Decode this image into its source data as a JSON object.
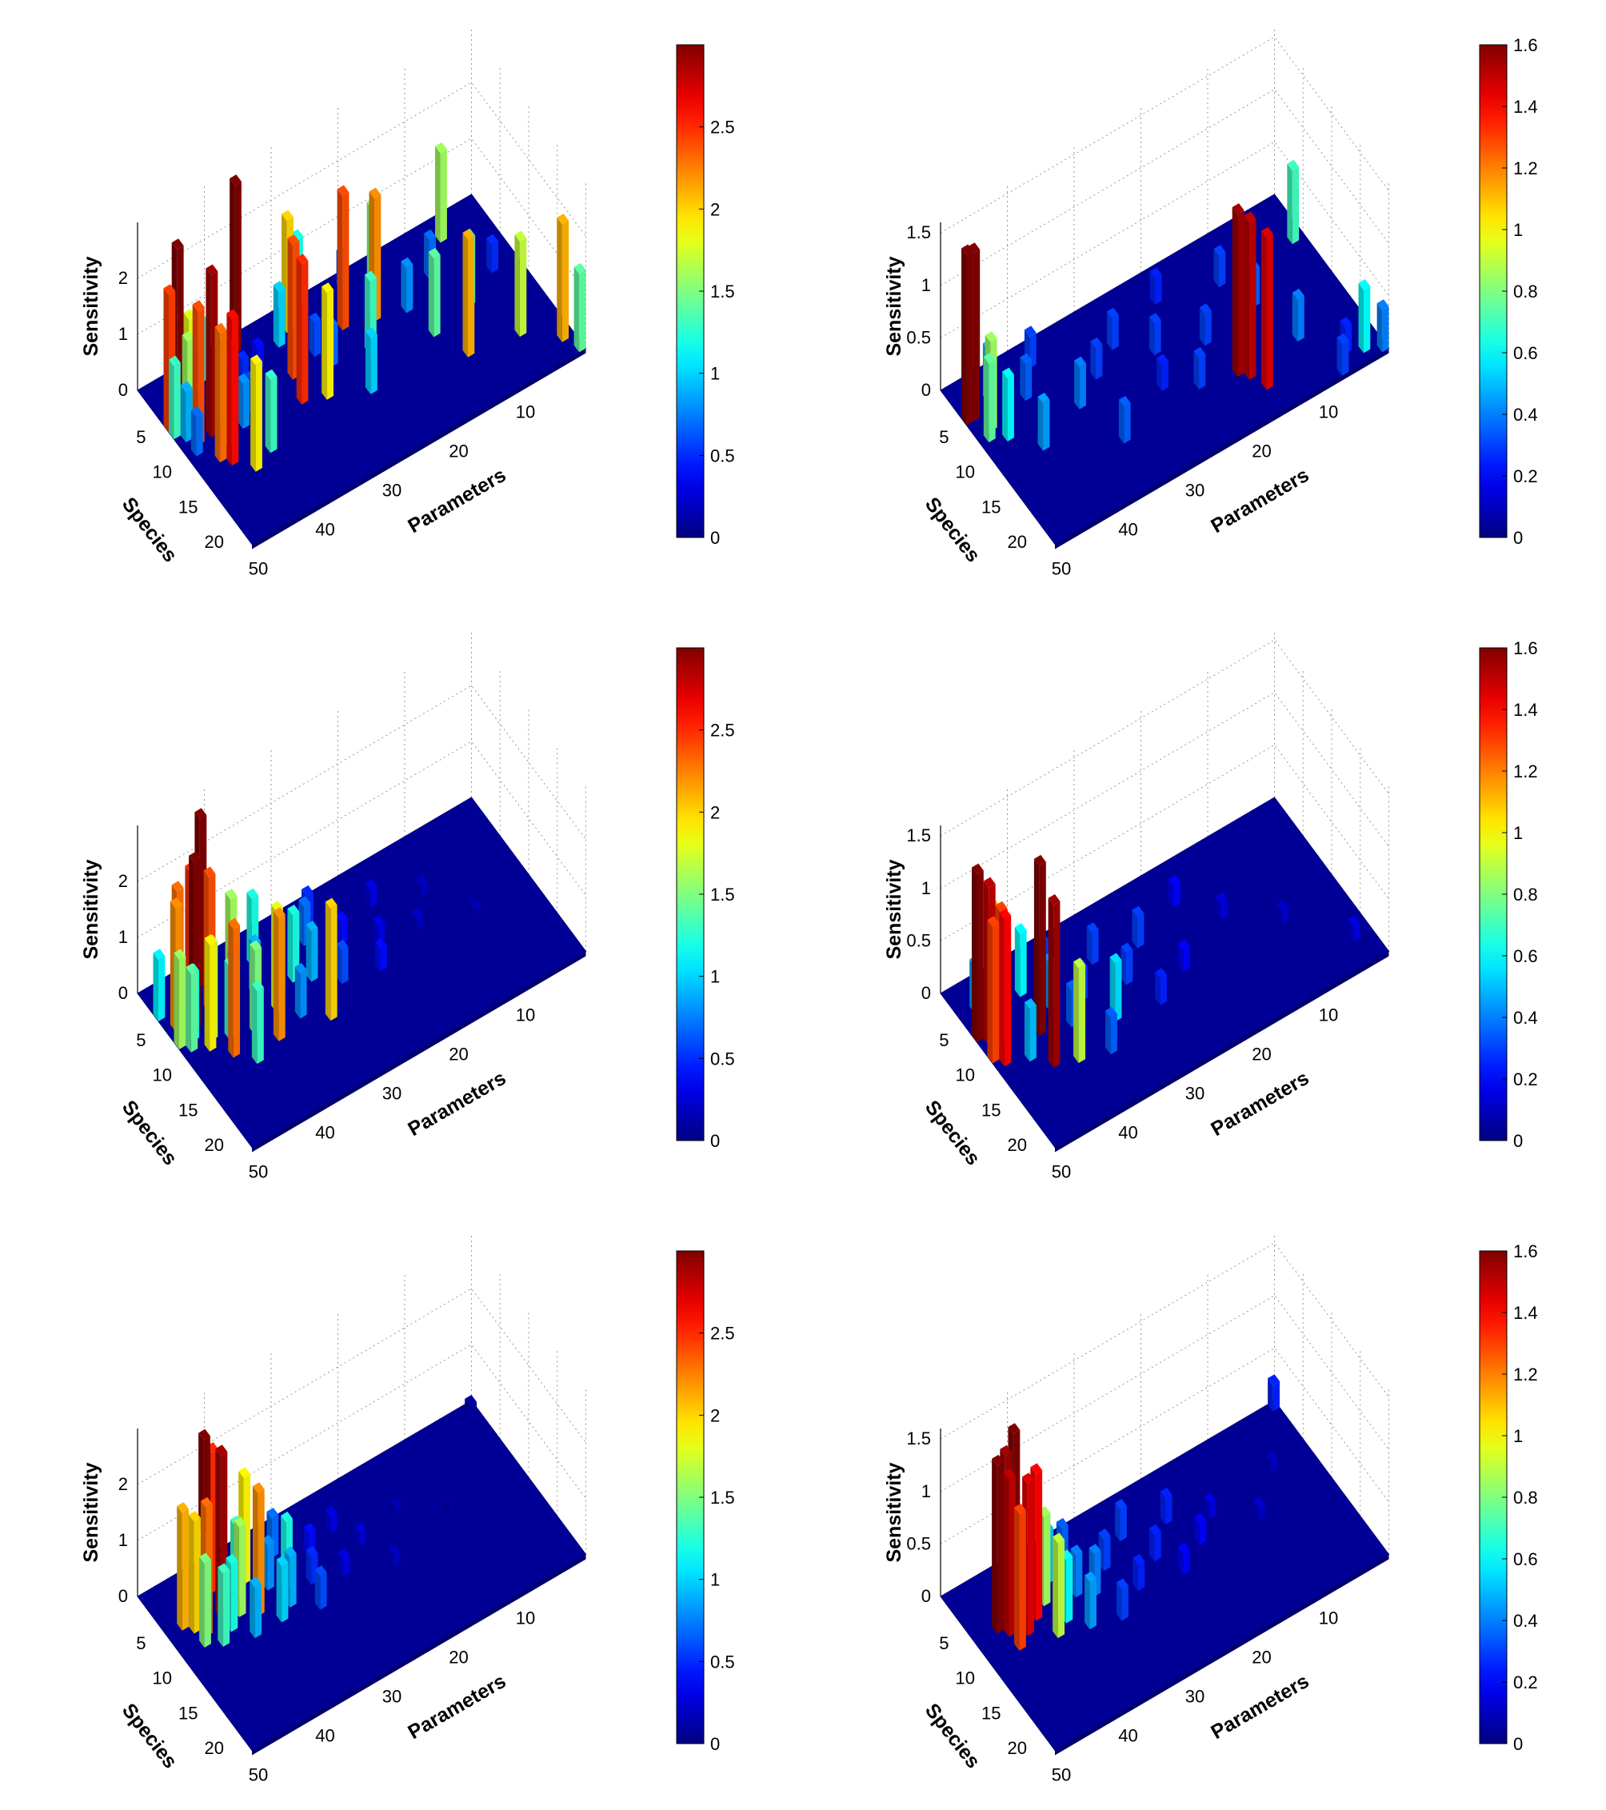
{
  "chart_data": [
    {
      "type": "bar3d",
      "panel": "top-left",
      "xlabel": "Parameters",
      "ylabel": "Species",
      "zlabel": "Sensitivity",
      "x_ticks": [
        "10",
        "20",
        "30",
        "40",
        "50"
      ],
      "y_ticks": [
        "5",
        "10",
        "15",
        "20"
      ],
      "z_ticks": [
        "0",
        "1",
        "2"
      ],
      "colorbar_ticks": [
        "0",
        "0.5",
        "1",
        "1.5",
        "2",
        "2.5"
      ],
      "zlim": [
        0,
        3
      ],
      "bars": [
        [
          1,
          6,
          2.45
        ],
        [
          1,
          7,
          1.3
        ],
        [
          2,
          8,
          0.9
        ],
        [
          2,
          10,
          0.7
        ],
        [
          3,
          5,
          3.0
        ],
        [
          3,
          7,
          1.6
        ],
        [
          3,
          9,
          2.4
        ],
        [
          4,
          6,
          1.8
        ],
        [
          4,
          12,
          2.3
        ],
        [
          5,
          9,
          2.9
        ],
        [
          5,
          13,
          2.6
        ],
        [
          6,
          4,
          0.8
        ],
        [
          6,
          11,
          1.8
        ],
        [
          7,
          8,
          1.2
        ],
        [
          7,
          15,
          1.9
        ],
        [
          8,
          3,
          1.1
        ],
        [
          9,
          10,
          0.8
        ],
        [
          10,
          14,
          1.3
        ],
        [
          11,
          9,
          0.6
        ],
        [
          12,
          6,
          0.5
        ],
        [
          14,
          2,
          3.0
        ],
        [
          15,
          5,
          0.4
        ],
        [
          17,
          11,
          2.5
        ],
        [
          18,
          8,
          2.4
        ],
        [
          19,
          4,
          1.0
        ],
        [
          20,
          12,
          1.9
        ],
        [
          21,
          3,
          2.0
        ],
        [
          22,
          7,
          0.6
        ],
        [
          23,
          9,
          0.7
        ],
        [
          24,
          1,
          1.2
        ],
        [
          25,
          14,
          1.0
        ],
        [
          27,
          6,
          2.4
        ],
        [
          28,
          10,
          1.3
        ],
        [
          30,
          2,
          0.6
        ],
        [
          31,
          7,
          2.2
        ],
        [
          33,
          4,
          1.5
        ],
        [
          35,
          8,
          0.8
        ],
        [
          36,
          12,
          1.4
        ],
        [
          38,
          16,
          2.1
        ],
        [
          40,
          6,
          0.7
        ],
        [
          42,
          11,
          1.2
        ],
        [
          44,
          3,
          1.6
        ],
        [
          45,
          17,
          1.7
        ],
        [
          47,
          9,
          0.5
        ],
        [
          49,
          20,
          2.1
        ],
        [
          50,
          22,
          1.4
        ]
      ]
    },
    {
      "type": "bar3d",
      "panel": "top-right",
      "xlabel": "Parameters",
      "ylabel": "Species",
      "zlabel": "Sensitivity",
      "x_ticks": [
        "10",
        "20",
        "30",
        "40",
        "50"
      ],
      "y_ticks": [
        "5",
        "10",
        "15",
        "20"
      ],
      "z_ticks": [
        "0",
        "0.5",
        "1",
        "1.5"
      ],
      "colorbar_ticks": [
        "0",
        "0.2",
        "0.4",
        "0.6",
        "0.8",
        "1",
        "1.2",
        "1.4",
        "1.6"
      ],
      "zlim": [
        0,
        1.6
      ],
      "bars": [
        [
          1,
          5,
          1.62
        ],
        [
          2,
          5,
          1.6
        ],
        [
          2,
          8,
          0.75
        ],
        [
          3,
          7,
          0.85
        ],
        [
          4,
          9,
          0.6
        ],
        [
          5,
          4,
          0.5
        ],
        [
          7,
          12,
          0.45
        ],
        [
          9,
          6,
          0.35
        ],
        [
          12,
          3,
          0.3
        ],
        [
          14,
          10,
          0.4
        ],
        [
          16,
          16,
          0.35
        ],
        [
          18,
          8,
          0.3
        ],
        [
          22,
          6,
          0.3
        ],
        [
          24,
          13,
          0.25
        ],
        [
          26,
          9,
          0.3
        ],
        [
          28,
          15,
          0.3
        ],
        [
          30,
          4,
          0.25
        ],
        [
          32,
          11,
          0.3
        ],
        [
          33,
          16,
          1.55
        ],
        [
          34,
          17,
          1.5
        ],
        [
          35,
          19,
          1.45
        ],
        [
          36,
          14,
          1.2
        ],
        [
          38,
          6,
          0.3
        ],
        [
          40,
          10,
          0.35
        ],
        [
          42,
          16,
          0.4
        ],
        [
          44,
          22,
          0.3
        ],
        [
          46,
          20,
          0.25
        ],
        [
          48,
          21,
          0.6
        ],
        [
          49,
          6,
          0.7
        ],
        [
          50,
          22,
          0.4
        ]
      ]
    },
    {
      "type": "bar3d",
      "panel": "middle-left",
      "xlabel": "Parameters",
      "ylabel": "Species",
      "zlabel": "Sensitivity",
      "x_ticks": [
        "10",
        "20",
        "30",
        "40",
        "50"
      ],
      "y_ticks": [
        "5",
        "10",
        "15",
        "20"
      ],
      "z_ticks": [
        "0",
        "1",
        "2"
      ],
      "colorbar_ticks": [
        "0",
        "0.5",
        "1",
        "1.5",
        "2",
        "2.5"
      ],
      "zlim": [
        0,
        3
      ],
      "bars": [
        [
          1,
          4,
          1.1
        ],
        [
          1,
          8,
          1.6
        ],
        [
          2,
          6,
          2.2
        ],
        [
          2,
          9,
          1.4
        ],
        [
          3,
          5,
          2.3
        ],
        [
          3,
          8,
          1.2
        ],
        [
          4,
          7,
          3.0
        ],
        [
          4,
          10,
          1.9
        ],
        [
          5,
          5,
          2.5
        ],
        [
          5,
          9,
          1.7
        ],
        [
          6,
          12,
          2.3
        ],
        [
          7,
          6,
          2.4
        ],
        [
          7,
          10,
          1.3
        ],
        [
          8,
          3,
          3.0
        ],
        [
          8,
          14,
          1.3
        ],
        [
          9,
          8,
          1.1
        ],
        [
          10,
          11,
          1.5
        ],
        [
          11,
          5,
          1.6
        ],
        [
          12,
          13,
          2.2
        ],
        [
          13,
          7,
          0.9
        ],
        [
          14,
          10,
          1.8
        ],
        [
          15,
          4,
          1.2
        ],
        [
          16,
          12,
          0.8
        ],
        [
          18,
          8,
          1.2
        ],
        [
          19,
          14,
          2.0
        ],
        [
          20,
          9,
          0.9
        ],
        [
          22,
          5,
          0.7
        ],
        [
          23,
          11,
          0.6
        ],
        [
          24,
          3,
          0.5
        ],
        [
          26,
          7,
          0.4
        ],
        [
          28,
          12,
          0.4
        ],
        [
          30,
          9,
          0.3
        ],
        [
          32,
          5,
          0.3
        ],
        [
          35,
          10,
          0.2
        ],
        [
          38,
          7,
          0.2
        ],
        [
          42,
          12,
          0.15
        ]
      ]
    },
    {
      "type": "bar3d",
      "panel": "middle-right",
      "xlabel": "Parameters",
      "ylabel": "Species",
      "zlabel": "Sensitivity",
      "x_ticks": [
        "10",
        "20",
        "30",
        "40",
        "50"
      ],
      "y_ticks": [
        "5",
        "10",
        "15",
        "20"
      ],
      "z_ticks": [
        "0",
        "0.5",
        "1",
        "1.5"
      ],
      "colorbar_ticks": [
        "0",
        "0.2",
        "0.4",
        "0.6",
        "0.8",
        "1",
        "1.2",
        "1.4",
        "1.6"
      ],
      "zlim": [
        0,
        1.6
      ],
      "bars": [
        [
          1,
          7,
          1.6
        ],
        [
          1,
          10,
          1.3
        ],
        [
          2,
          8,
          1.5
        ],
        [
          2,
          11,
          1.4
        ],
        [
          3,
          9,
          1.3
        ],
        [
          3,
          4,
          0.45
        ],
        [
          4,
          6,
          1.1
        ],
        [
          5,
          12,
          0.5
        ],
        [
          6,
          3,
          0.4
        ],
        [
          7,
          14,
          1.55
        ],
        [
          8,
          10,
          1.62
        ],
        [
          9,
          5,
          0.6
        ],
        [
          10,
          15,
          0.9
        ],
        [
          11,
          8,
          0.45
        ],
        [
          12,
          11,
          0.35
        ],
        [
          13,
          4,
          0.3
        ],
        [
          14,
          16,
          0.35
        ],
        [
          15,
          9,
          0.3
        ],
        [
          17,
          13,
          0.55
        ],
        [
          19,
          6,
          0.3
        ],
        [
          21,
          10,
          0.3
        ],
        [
          23,
          14,
          0.25
        ],
        [
          25,
          7,
          0.3
        ],
        [
          28,
          12,
          0.2
        ],
        [
          32,
          5,
          0.2
        ],
        [
          36,
          9,
          0.15
        ],
        [
          42,
          13,
          0.12
        ],
        [
          48,
          19,
          0.15
        ]
      ]
    },
    {
      "type": "bar3d",
      "panel": "bottom-left",
      "xlabel": "Parameters",
      "ylabel": "Species",
      "zlabel": "Sensitivity",
      "x_ticks": [
        "10",
        "20",
        "30",
        "40",
        "50"
      ],
      "y_ticks": [
        "5",
        "10",
        "15",
        "20"
      ],
      "z_ticks": [
        "0",
        "1",
        "2"
      ],
      "colorbar_ticks": [
        "0",
        "0.5",
        "1",
        "1.5",
        "2",
        "2.5"
      ],
      "zlim": [
        0,
        3
      ],
      "bars": [
        [
          3,
          6,
          2.1
        ],
        [
          4,
          7,
          2.0
        ],
        [
          4,
          9,
          1.5
        ],
        [
          5,
          8,
          2.3
        ],
        [
          6,
          6,
          1.4
        ],
        [
          6,
          10,
          1.3
        ],
        [
          7,
          5,
          3.0
        ],
        [
          8,
          7,
          2.9
        ],
        [
          8,
          9,
          1.2
        ],
        [
          9,
          4,
          2.5
        ],
        [
          10,
          8,
          1.6
        ],
        [
          10,
          11,
          0.9
        ],
        [
          11,
          6,
          1.3
        ],
        [
          12,
          9,
          2.2
        ],
        [
          13,
          5,
          1.9
        ],
        [
          14,
          11,
          1.0
        ],
        [
          15,
          7,
          0.8
        ],
        [
          16,
          10,
          0.9
        ],
        [
          17,
          8,
          1.2
        ],
        [
          18,
          4,
          0.7
        ],
        [
          19,
          12,
          0.6
        ],
        [
          20,
          9,
          0.5
        ],
        [
          22,
          6,
          0.4
        ],
        [
          24,
          10,
          0.3
        ],
        [
          26,
          5,
          0.3
        ],
        [
          28,
          8,
          0.25
        ],
        [
          30,
          12,
          0.2
        ],
        [
          34,
          7,
          0.15
        ],
        [
          40,
          10,
          0.1
        ],
        [
          50,
          1,
          0.1
        ]
      ]
    },
    {
      "type": "bar3d",
      "panel": "bottom-right",
      "xlabel": "Parameters",
      "ylabel": "Species",
      "zlabel": "Sensitivity",
      "x_ticks": [
        "10",
        "20",
        "30",
        "40",
        "50"
      ],
      "y_ticks": [
        "5",
        "10",
        "15",
        "20"
      ],
      "z_ticks": [
        "0",
        "0.5",
        "1",
        "1.5"
      ],
      "colorbar_ticks": [
        "0",
        "0.2",
        "0.4",
        "0.6",
        "0.8",
        "1",
        "1.2",
        "1.4",
        "1.6"
      ],
      "zlim": [
        0,
        1.6
      ],
      "bars": [
        [
          4,
          7,
          1.6
        ],
        [
          5,
          8,
          1.5
        ],
        [
          5,
          10,
          1.3
        ],
        [
          6,
          6,
          1.55
        ],
        [
          7,
          9,
          1.45
        ],
        [
          8,
          5,
          1.62
        ],
        [
          9,
          8,
          1.4
        ],
        [
          10,
          11,
          0.9
        ],
        [
          11,
          7,
          0.85
        ],
        [
          12,
          10,
          0.6
        ],
        [
          13,
          5,
          0.5
        ],
        [
          14,
          12,
          0.45
        ],
        [
          15,
          8,
          0.4
        ],
        [
          16,
          4,
          0.35
        ],
        [
          17,
          9,
          0.4
        ],
        [
          18,
          13,
          0.3
        ],
        [
          20,
          7,
          0.3
        ],
        [
          22,
          11,
          0.25
        ],
        [
          24,
          5,
          0.3
        ],
        [
          26,
          9,
          0.25
        ],
        [
          28,
          12,
          0.2
        ],
        [
          30,
          6,
          0.25
        ],
        [
          32,
          10,
          0.2
        ],
        [
          35,
          8,
          0.15
        ],
        [
          40,
          11,
          0.12
        ],
        [
          45,
          7,
          0.1
        ],
        [
          50,
          1,
          0.25
        ]
      ]
    }
  ]
}
